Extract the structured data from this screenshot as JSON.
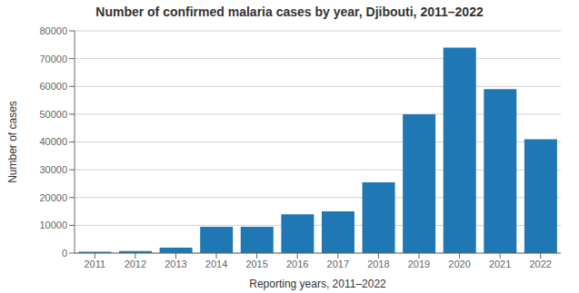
{
  "chart_data": {
    "type": "bar",
    "title": "Number of confirmed malaria cases by year, Djibouti, 2011–2022",
    "xlabel": "Reporting years, 2011–2022",
    "ylabel": "Number of cases",
    "categories": [
      "2011",
      "2012",
      "2013",
      "2014",
      "2015",
      "2016",
      "2017",
      "2018",
      "2019",
      "2020",
      "2021",
      "2022"
    ],
    "values": [
      500,
      700,
      2000,
      9500,
      9500,
      14000,
      15000,
      25500,
      50000,
      74000,
      59000,
      41000
    ],
    "color": "#1F77B4",
    "ylim": [
      0,
      80000
    ],
    "yticks": [
      0,
      10000,
      20000,
      30000,
      40000,
      50000,
      60000,
      70000,
      80000
    ],
    "grid": true
  }
}
